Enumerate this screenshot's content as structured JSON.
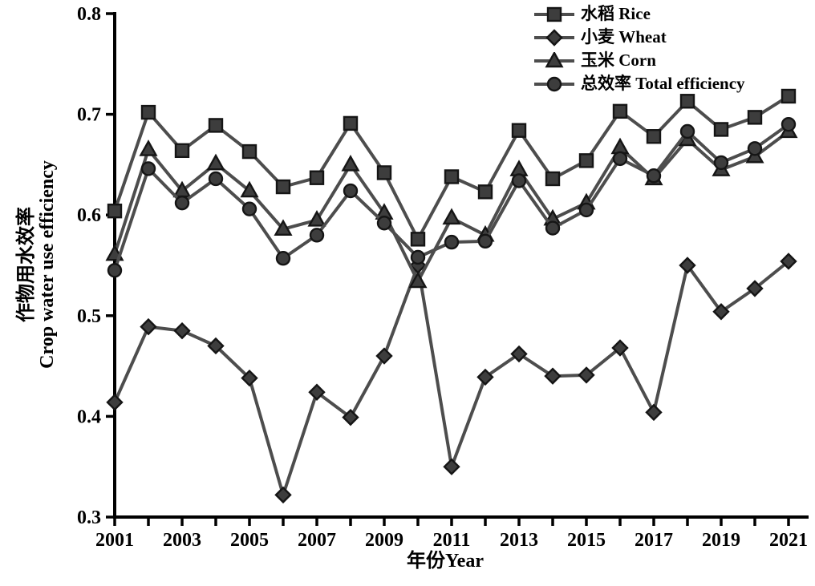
{
  "chart_data": {
    "type": "line",
    "title": "",
    "xlabel": "年份Year",
    "ylabel_zh": "作物用水效率",
    "ylabel_en": "Crop water use efficiency",
    "xlim": [
      2001,
      2021
    ],
    "ylim": [
      0.3,
      0.8
    ],
    "grid": false,
    "legend_position": "top-right-inside",
    "x": [
      2001,
      2002,
      2003,
      2004,
      2005,
      2006,
      2007,
      2008,
      2009,
      2010,
      2011,
      2012,
      2013,
      2014,
      2015,
      2016,
      2017,
      2018,
      2019,
      2020,
      2021
    ],
    "x_tick_labels": [
      "2001",
      "2003",
      "2005",
      "2007",
      "2009",
      "2011",
      "2013",
      "2015",
      "2017",
      "2019",
      "2021"
    ],
    "y_ticks": [
      0.3,
      0.4,
      0.5,
      0.6,
      0.7,
      0.8
    ],
    "y_tick_labels": [
      "0.3",
      "0.4",
      "0.5",
      "0.6",
      "0.7",
      "0.8"
    ],
    "series": [
      {
        "name": "水稻 Rice",
        "marker": "square",
        "values": [
          0.604,
          0.702,
          0.664,
          0.689,
          0.663,
          0.628,
          0.637,
          0.691,
          0.642,
          0.576,
          0.638,
          0.623,
          0.684,
          0.636,
          0.654,
          0.703,
          0.678,
          0.713,
          0.685,
          0.697,
          0.718
        ]
      },
      {
        "name": "小麦 Wheat",
        "marker": "diamond",
        "values": [
          0.414,
          0.489,
          0.485,
          0.47,
          0.438,
          0.322,
          0.424,
          0.399,
          0.46,
          0.55,
          0.35,
          0.439,
          0.462,
          0.44,
          0.441,
          0.468,
          0.404,
          0.55,
          0.504,
          0.527,
          0.554
        ]
      },
      {
        "name": "玉米 Corn",
        "marker": "triangle",
        "values": [
          0.561,
          0.665,
          0.624,
          0.651,
          0.624,
          0.586,
          0.595,
          0.65,
          0.602,
          0.534,
          0.597,
          0.58,
          0.645,
          0.596,
          0.612,
          0.667,
          0.636,
          0.675,
          0.645,
          0.658,
          0.683
        ]
      },
      {
        "name": "总效率 Total efficiency",
        "marker": "circle",
        "values": [
          0.545,
          0.646,
          0.612,
          0.636,
          0.606,
          0.557,
          0.58,
          0.624,
          0.592,
          0.558,
          0.573,
          0.574,
          0.634,
          0.587,
          0.605,
          0.656,
          0.639,
          0.683,
          0.652,
          0.666,
          0.69
        ]
      }
    ],
    "colors": {
      "line": "#4d4d4d",
      "marker_fill": "#3d3d3d",
      "marker_stroke": "#151515",
      "axis": "#000000",
      "text": "#000000"
    }
  }
}
